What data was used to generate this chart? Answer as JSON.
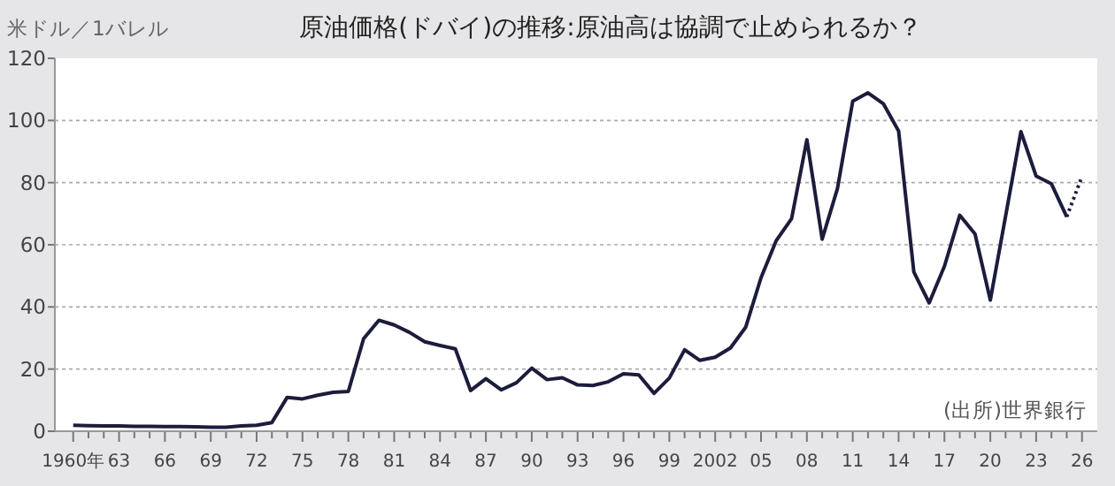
{
  "chart_data": {
    "type": "line",
    "title": "原油価格(ドバイ)の推移:原油高は協調で止められるか？",
    "ylabel": "米ドル／1バレル",
    "annotations": [
      "(出所)世界銀行"
    ],
    "xlim": [
      1958.8,
      2027
    ],
    "ylim": [
      0,
      120
    ],
    "yticks": [
      0,
      20,
      40,
      60,
      80,
      100,
      120
    ],
    "xticks": [
      {
        "value": 1960,
        "label": "1960年"
      },
      {
        "value": 1961,
        "label": null
      },
      {
        "value": 1962,
        "label": null
      },
      {
        "value": 1963,
        "label": "63"
      },
      {
        "value": 1964,
        "label": null
      },
      {
        "value": 1965,
        "label": null
      },
      {
        "value": 1966,
        "label": "66"
      },
      {
        "value": 1967,
        "label": null
      },
      {
        "value": 1968,
        "label": null
      },
      {
        "value": 1969,
        "label": "69"
      },
      {
        "value": 1970,
        "label": null
      },
      {
        "value": 1971,
        "label": null
      },
      {
        "value": 1972,
        "label": "72"
      },
      {
        "value": 1973,
        "label": null
      },
      {
        "value": 1974,
        "label": null
      },
      {
        "value": 1975,
        "label": "75"
      },
      {
        "value": 1976,
        "label": null
      },
      {
        "value": 1977,
        "label": null
      },
      {
        "value": 1978,
        "label": "78"
      },
      {
        "value": 1979,
        "label": null
      },
      {
        "value": 1980,
        "label": null
      },
      {
        "value": 1981,
        "label": "81"
      },
      {
        "value": 1982,
        "label": null
      },
      {
        "value": 1983,
        "label": null
      },
      {
        "value": 1984,
        "label": "84"
      },
      {
        "value": 1985,
        "label": null
      },
      {
        "value": 1986,
        "label": null
      },
      {
        "value": 1987,
        "label": "87"
      },
      {
        "value": 1988,
        "label": null
      },
      {
        "value": 1989,
        "label": null
      },
      {
        "value": 1990,
        "label": "90"
      },
      {
        "value": 1991,
        "label": null
      },
      {
        "value": 1992,
        "label": null
      },
      {
        "value": 1993,
        "label": "93"
      },
      {
        "value": 1994,
        "label": null
      },
      {
        "value": 1995,
        "label": null
      },
      {
        "value": 1996,
        "label": "96"
      },
      {
        "value": 1997,
        "label": null
      },
      {
        "value": 1998,
        "label": null
      },
      {
        "value": 1999,
        "label": "99"
      },
      {
        "value": 2000,
        "label": null
      },
      {
        "value": 2001,
        "label": null
      },
      {
        "value": 2002,
        "label": "2002"
      },
      {
        "value": 2003,
        "label": null
      },
      {
        "value": 2004,
        "label": null
      },
      {
        "value": 2005,
        "label": "05"
      },
      {
        "value": 2006,
        "label": null
      },
      {
        "value": 2007,
        "label": null
      },
      {
        "value": 2008,
        "label": "08"
      },
      {
        "value": 2009,
        "label": null
      },
      {
        "value": 2010,
        "label": null
      },
      {
        "value": 2011,
        "label": "11"
      },
      {
        "value": 2012,
        "label": null
      },
      {
        "value": 2013,
        "label": null
      },
      {
        "value": 2014,
        "label": "14"
      },
      {
        "value": 2015,
        "label": null
      },
      {
        "value": 2016,
        "label": null
      },
      {
        "value": 2017,
        "label": "17"
      },
      {
        "value": 2018,
        "label": null
      },
      {
        "value": 2019,
        "label": null
      },
      {
        "value": 2020,
        "label": "20"
      },
      {
        "value": 2021,
        "label": null
      },
      {
        "value": 2022,
        "label": null
      },
      {
        "value": 2023,
        "label": "23"
      },
      {
        "value": 2024,
        "label": null
      },
      {
        "value": 2025,
        "label": null
      },
      {
        "value": 2026,
        "label": "26"
      }
    ],
    "grid": "y",
    "series": [
      {
        "color": "#1c1c3c",
        "line_style": "solid",
        "x": [
          1960,
          1961,
          1962,
          1963,
          1964,
          1965,
          1966,
          1967,
          1968,
          1969,
          1970,
          1971,
          1972,
          1973,
          1974,
          1975,
          1976,
          1977,
          1978,
          1979,
          1980,
          1981,
          1982,
          1983,
          1984,
          1985,
          1986,
          1987,
          1988,
          1989,
          1990,
          1991,
          1992,
          1993,
          1994,
          1995,
          1996,
          1997,
          1998,
          1999,
          2000,
          2001,
          2002,
          2003,
          2004,
          2005,
          2006,
          2007,
          2008,
          2009,
          2010,
          2011,
          2012,
          2013,
          2014,
          2015,
          2016,
          2017,
          2018,
          2019,
          2020,
          2021,
          2022,
          2023,
          2024,
          2025
        ],
        "values": [
          1.9,
          1.8,
          1.7,
          1.7,
          1.6,
          1.6,
          1.5,
          1.5,
          1.4,
          1.3,
          1.3,
          1.7,
          1.9,
          2.8,
          10.9,
          10.4,
          11.6,
          12.5,
          12.8,
          29.8,
          35.7,
          34.2,
          31.8,
          28.8,
          27.6,
          26.5,
          13.1,
          16.9,
          13.3,
          15.6,
          20.3,
          16.6,
          17.2,
          14.9,
          14.7,
          15.9,
          18.5,
          18.1,
          12.2,
          17.1,
          26.2,
          22.8,
          23.8,
          26.8,
          33.5,
          49.4,
          61.4,
          68.4,
          93.8,
          61.8,
          78.1,
          106.2,
          108.9,
          105.4,
          96.6,
          51.2,
          41.3,
          53.1,
          69.5,
          63.5,
          42.2,
          69.2,
          96.4,
          82.1,
          79.6,
          69
        ]
      },
      {
        "color": "#1c1c3c",
        "line_style": "dotted",
        "x": [
          2025,
          2026
        ],
        "values": [
          69,
          82
        ]
      }
    ]
  }
}
